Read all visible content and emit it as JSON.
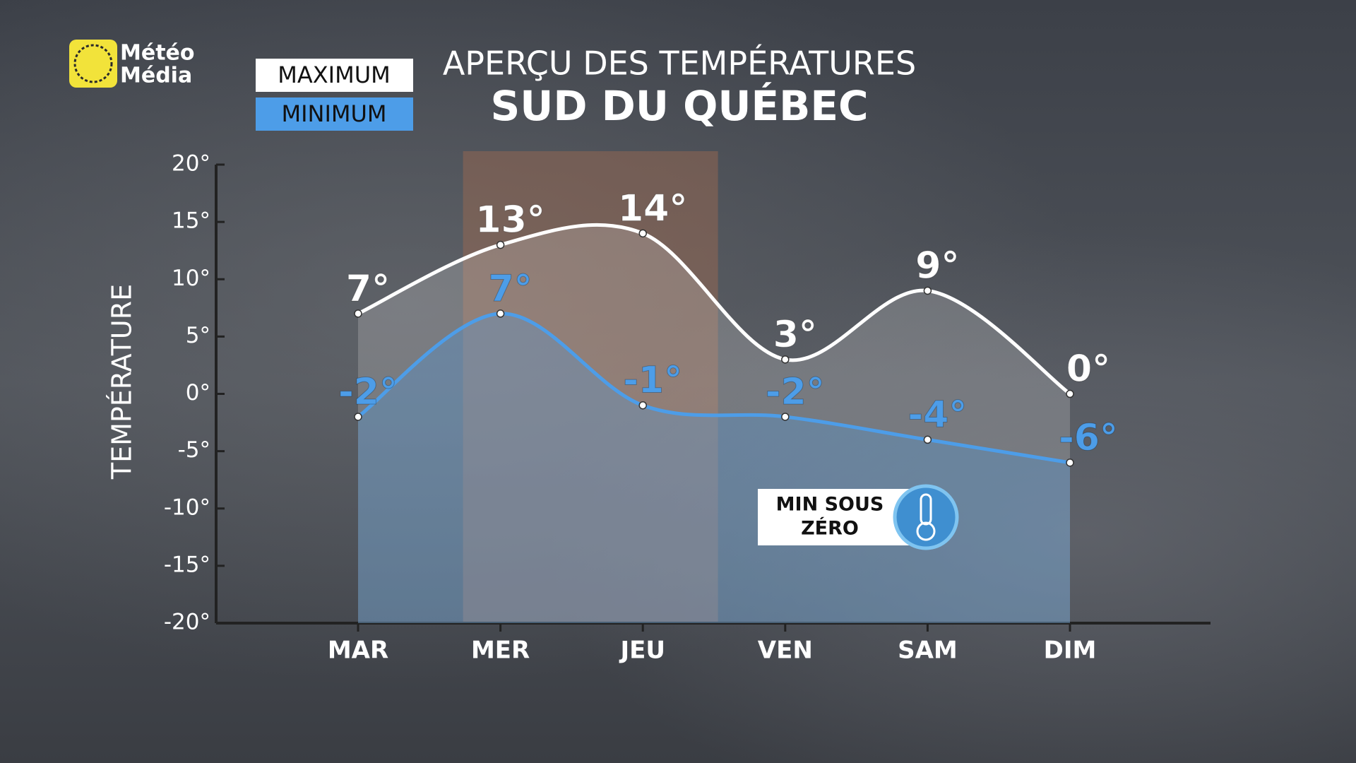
{
  "logo": [
    "Météo",
    "Média"
  ],
  "chart_data": {
    "type": "line",
    "title": "APERÇU DES TEMPÉRATURES",
    "subtitle": "SUD DU QUÉBEC",
    "y_label": "TEMPÉRATURE",
    "categories": [
      "MAR",
      "MER",
      "JEU",
      "VEN",
      "SAM",
      "DIM"
    ],
    "series": [
      {
        "name": "MAXIMUM",
        "color": "#ffffff",
        "values": [
          7,
          13,
          14,
          3,
          9,
          0
        ],
        "value_labels": [
          "7°",
          "13°",
          "14°",
          "3°",
          "9°",
          "0°"
        ]
      },
      {
        "name": "MINIMUM",
        "color": "#4d9de8",
        "values": [
          -2,
          7,
          -1,
          -2,
          -4,
          -6
        ],
        "value_labels": [
          "-2°",
          "7°",
          "-1°",
          "-2°",
          "-4°",
          "-6°"
        ]
      }
    ],
    "ylim": [
      -20,
      20
    ],
    "yticks": [
      {
        "value": 20,
        "label": "20°"
      },
      {
        "value": 15,
        "label": "15°"
      },
      {
        "value": 10,
        "label": "10°"
      },
      {
        "value": 5,
        "label": "5°"
      },
      {
        "value": 0,
        "label": "0°"
      },
      {
        "value": -5,
        "label": "-5°"
      },
      {
        "value": -10,
        "label": "-10°"
      },
      {
        "value": -15,
        "label": "-15°"
      },
      {
        "value": -20,
        "label": "-20°"
      }
    ],
    "annotation": [
      "MIN SOUS",
      "ZÉRO"
    ]
  }
}
